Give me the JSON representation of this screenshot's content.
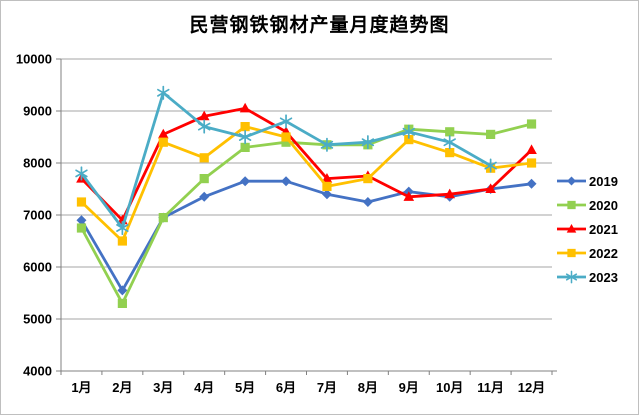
{
  "title": "民营钢铁钢材产量月度趋势图",
  "chart_data": {
    "type": "line",
    "title": "民营钢铁钢材产量月度趋势图",
    "categories": [
      "1月",
      "2月",
      "3月",
      "4月",
      "5月",
      "6月",
      "7月",
      "8月",
      "9月",
      "10月",
      "11月",
      "12月"
    ],
    "y_tick_labels": [
      "10000",
      "9000",
      "8000",
      "7000",
      "6000",
      "5000",
      "4000"
    ],
    "ylim": [
      4000,
      10000
    ],
    "ytick_step": 1000,
    "grid": "horizontal",
    "legend_position": "right",
    "axis_color": "#808080",
    "gridline_color": "#a6a6a6",
    "series": [
      {
        "name": "2019",
        "color": "#4472C4",
        "marker": "diamond",
        "values": [
          6900,
          5550,
          6950,
          7350,
          7650,
          7650,
          7400,
          7250,
          7450,
          7350,
          7500,
          7600
        ]
      },
      {
        "name": "2020",
        "color": "#92D050",
        "marker": "square",
        "values": [
          6750,
          5300,
          6950,
          7700,
          8300,
          8400,
          8350,
          8350,
          8650,
          8600,
          8550,
          8750
        ]
      },
      {
        "name": "2021",
        "color": "#FF0000",
        "marker": "triangle",
        "values": [
          7700,
          6900,
          8550,
          8900,
          9050,
          8600,
          7700,
          7750,
          7350,
          7400,
          7500,
          8250
        ]
      },
      {
        "name": "2022",
        "color": "#FFC000",
        "marker": "square",
        "values": [
          7250,
          6500,
          8400,
          8100,
          8700,
          8500,
          7550,
          7700,
          8450,
          8200,
          7900,
          8000
        ]
      },
      {
        "name": "2023",
        "color": "#4BACC6",
        "marker": "asterisk",
        "values": [
          7800,
          6750,
          9350,
          8700,
          8500,
          8800,
          8350,
          8400,
          8600,
          8400,
          7950,
          null
        ]
      }
    ]
  }
}
